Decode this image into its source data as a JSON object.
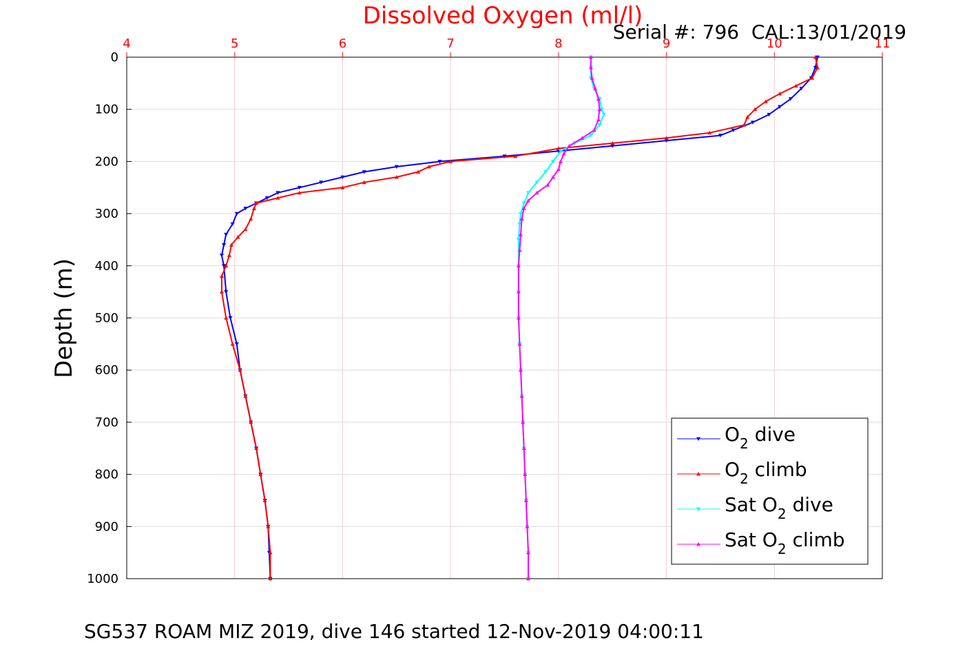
{
  "chart_data": {
    "type": "scatter",
    "title": "Dissolved Oxygen (ml/l)",
    "subtitle": "Serial #: 796  CAL:13/01/2019",
    "xlabel": "Dissolved Oxygen (ml/l)",
    "ylabel": "Depth (m)",
    "xlim": [
      4,
      11
    ],
    "ylim": [
      0,
      1000
    ],
    "y_reversed": true,
    "x_axis_position": "top",
    "x_ticks": [
      "4",
      "5",
      "6",
      "7",
      "8",
      "9",
      "10",
      "11"
    ],
    "y_ticks": [
      "0",
      "100",
      "200",
      "300",
      "400",
      "500",
      "600",
      "700",
      "800",
      "900",
      "1000"
    ],
    "grid": true,
    "legend_position": "bottom-right",
    "footer": "SG537 ROAM MIZ 2019, dive 146 started 12-Nov-2019 04:00:11",
    "series": [
      {
        "name": "O2 dive",
        "legend_parts": [
          "O",
          "2",
          " dive"
        ],
        "color": "#0000ff",
        "marker": "triangle-down",
        "points": [
          [
            10.4,
            0
          ],
          [
            10.38,
            20
          ],
          [
            10.34,
            40
          ],
          [
            10.25,
            60
          ],
          [
            10.15,
            80
          ],
          [
            10.05,
            95
          ],
          [
            9.95,
            110
          ],
          [
            9.8,
            125
          ],
          [
            9.62,
            140
          ],
          [
            9.5,
            150
          ],
          [
            9.0,
            160
          ],
          [
            8.5,
            170
          ],
          [
            8.0,
            180
          ],
          [
            7.5,
            190
          ],
          [
            6.9,
            200
          ],
          [
            6.5,
            210
          ],
          [
            6.2,
            220
          ],
          [
            6.0,
            230
          ],
          [
            5.8,
            240
          ],
          [
            5.6,
            250
          ],
          [
            5.4,
            260
          ],
          [
            5.3,
            270
          ],
          [
            5.2,
            280
          ],
          [
            5.1,
            290
          ],
          [
            5.02,
            300
          ],
          [
            4.98,
            320
          ],
          [
            4.92,
            340
          ],
          [
            4.9,
            360
          ],
          [
            4.88,
            380
          ],
          [
            4.9,
            400
          ],
          [
            4.92,
            450
          ],
          [
            4.96,
            500
          ],
          [
            5.02,
            550
          ],
          [
            5.05,
            600
          ],
          [
            5.1,
            650
          ],
          [
            5.15,
            700
          ],
          [
            5.2,
            750
          ],
          [
            5.24,
            800
          ],
          [
            5.28,
            850
          ],
          [
            5.31,
            900
          ],
          [
            5.32,
            950
          ],
          [
            5.33,
            1000
          ]
        ]
      },
      {
        "name": "O2 climb",
        "legend_parts": [
          "O",
          "2",
          " climb"
        ],
        "color": "#ff0000",
        "marker": "triangle-up",
        "points": [
          [
            10.38,
            0
          ],
          [
            10.4,
            20
          ],
          [
            10.35,
            40
          ],
          [
            10.2,
            55
          ],
          [
            10.05,
            70
          ],
          [
            9.92,
            85
          ],
          [
            9.82,
            100
          ],
          [
            9.75,
            115
          ],
          [
            9.72,
            130
          ],
          [
            9.4,
            145
          ],
          [
            9.0,
            155
          ],
          [
            8.5,
            165
          ],
          [
            8.0,
            175
          ],
          [
            7.6,
            190
          ],
          [
            7.0,
            200
          ],
          [
            6.8,
            210
          ],
          [
            6.7,
            220
          ],
          [
            6.5,
            230
          ],
          [
            6.2,
            240
          ],
          [
            6.0,
            250
          ],
          [
            5.6,
            260
          ],
          [
            5.4,
            270
          ],
          [
            5.2,
            280
          ],
          [
            5.18,
            290
          ],
          [
            5.15,
            310
          ],
          [
            5.1,
            330
          ],
          [
            5.03,
            345
          ],
          [
            4.97,
            360
          ],
          [
            4.95,
            380
          ],
          [
            4.92,
            400
          ],
          [
            4.88,
            420
          ],
          [
            4.88,
            450
          ],
          [
            4.92,
            500
          ],
          [
            4.98,
            550
          ],
          [
            5.05,
            600
          ],
          [
            5.1,
            650
          ],
          [
            5.15,
            700
          ],
          [
            5.2,
            750
          ],
          [
            5.24,
            800
          ],
          [
            5.28,
            850
          ],
          [
            5.31,
            900
          ],
          [
            5.33,
            950
          ],
          [
            5.33,
            1000
          ]
        ]
      },
      {
        "name": "Sat O2 dive",
        "legend_parts": [
          "Sat O",
          "2",
          " dive"
        ],
        "color": "#00ffff",
        "marker": "triangle-down",
        "points": [
          [
            8.3,
            0
          ],
          [
            8.3,
            20
          ],
          [
            8.3,
            40
          ],
          [
            8.33,
            60
          ],
          [
            8.38,
            80
          ],
          [
            8.4,
            100
          ],
          [
            8.42,
            110
          ],
          [
            8.38,
            130
          ],
          [
            8.3,
            150
          ],
          [
            8.15,
            165
          ],
          [
            8.02,
            180
          ],
          [
            7.95,
            200
          ],
          [
            7.88,
            220
          ],
          [
            7.8,
            240
          ],
          [
            7.72,
            260
          ],
          [
            7.68,
            280
          ],
          [
            7.65,
            300
          ],
          [
            7.64,
            320
          ],
          [
            7.63,
            350
          ],
          [
            7.63,
            400
          ],
          [
            7.63,
            450
          ],
          [
            7.63,
            500
          ],
          [
            7.64,
            550
          ],
          [
            7.65,
            600
          ],
          [
            7.66,
            650
          ],
          [
            7.67,
            700
          ],
          [
            7.68,
            750
          ],
          [
            7.69,
            800
          ],
          [
            7.7,
            850
          ],
          [
            7.71,
            900
          ],
          [
            7.72,
            950
          ],
          [
            7.72,
            1000
          ]
        ]
      },
      {
        "name": "Sat O2 climb",
        "legend_parts": [
          "Sat O",
          "2",
          " climb"
        ],
        "color": "#ff00ff",
        "marker": "triangle-up",
        "points": [
          [
            8.3,
            0
          ],
          [
            8.3,
            20
          ],
          [
            8.31,
            40
          ],
          [
            8.34,
            60
          ],
          [
            8.37,
            80
          ],
          [
            8.38,
            100
          ],
          [
            8.37,
            120
          ],
          [
            8.33,
            140
          ],
          [
            8.22,
            155
          ],
          [
            8.1,
            170
          ],
          [
            8.05,
            185
          ],
          [
            8.02,
            200
          ],
          [
            8.0,
            215
          ],
          [
            7.95,
            230
          ],
          [
            7.9,
            245
          ],
          [
            7.8,
            260
          ],
          [
            7.72,
            275
          ],
          [
            7.68,
            290
          ],
          [
            7.66,
            310
          ],
          [
            7.65,
            340
          ],
          [
            7.64,
            370
          ],
          [
            7.63,
            400
          ],
          [
            7.63,
            450
          ],
          [
            7.63,
            500
          ],
          [
            7.64,
            550
          ],
          [
            7.65,
            600
          ],
          [
            7.66,
            650
          ],
          [
            7.67,
            700
          ],
          [
            7.68,
            750
          ],
          [
            7.69,
            800
          ],
          [
            7.7,
            850
          ],
          [
            7.71,
            900
          ],
          [
            7.72,
            950
          ],
          [
            7.72,
            1000
          ]
        ]
      }
    ]
  }
}
